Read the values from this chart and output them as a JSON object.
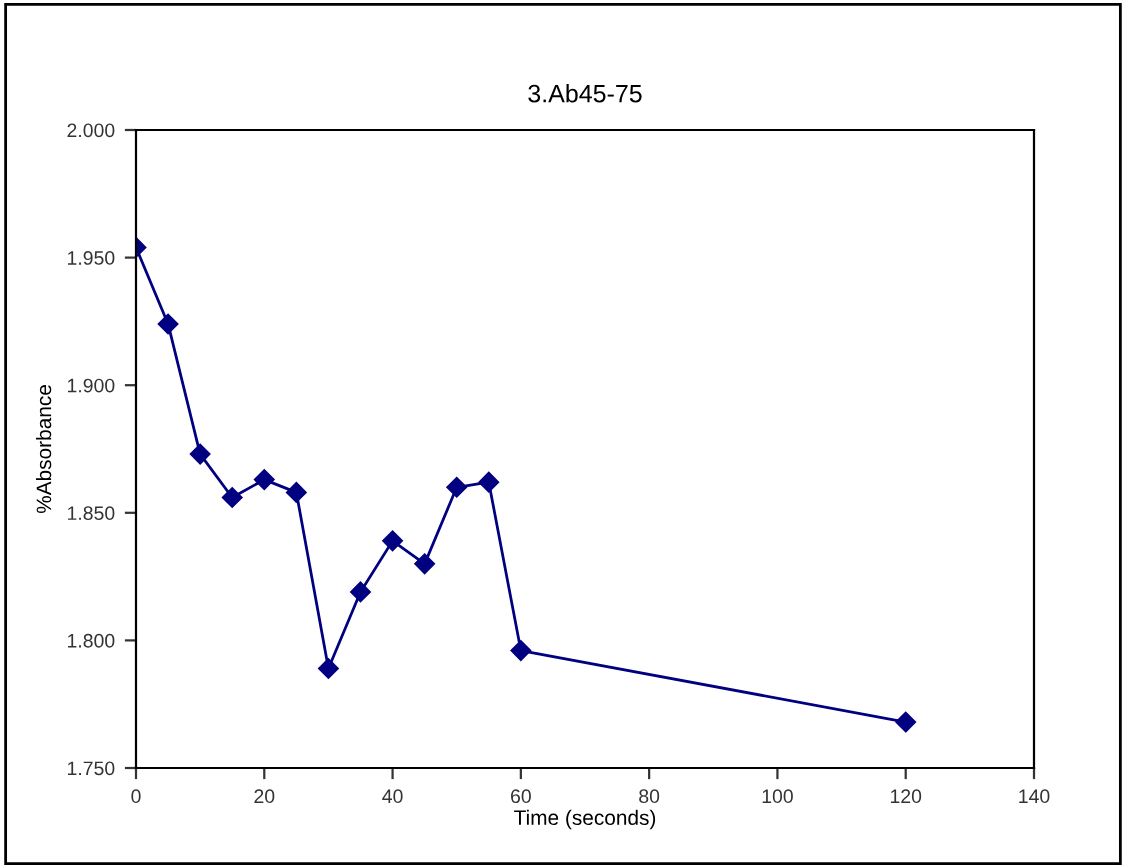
{
  "chart_data": {
    "type": "line",
    "title": "3.Ab45-75",
    "xlabel": "Time (seconds)",
    "ylabel": "%Absorbance",
    "x": [
      0,
      5,
      10,
      15,
      20,
      25,
      30,
      35,
      40,
      45,
      50,
      55,
      60,
      120
    ],
    "series": [
      {
        "color": "#000080",
        "values": [
          1.954,
          1.924,
          1.873,
          1.856,
          1.863,
          1.858,
          1.789,
          1.819,
          1.839,
          1.83,
          1.86,
          1.862,
          1.796,
          1.768
        ]
      }
    ],
    "xlim": [
      0,
      140
    ],
    "xticks": [
      0,
      20,
      40,
      60,
      80,
      100,
      120,
      140
    ],
    "ylim": [
      1.75,
      2.0
    ],
    "yticks": [
      {
        "value": 1.75,
        "label": "1.750"
      },
      {
        "value": 1.8,
        "label": "1.800"
      },
      {
        "value": 1.85,
        "label": "1.850"
      },
      {
        "value": 1.9,
        "label": "1.900"
      },
      {
        "value": 1.95,
        "label": "1.950"
      },
      {
        "value": 2.0,
        "label": "2.000"
      }
    ],
    "marker": "diamond",
    "line_style": "solid",
    "grid": false
  }
}
